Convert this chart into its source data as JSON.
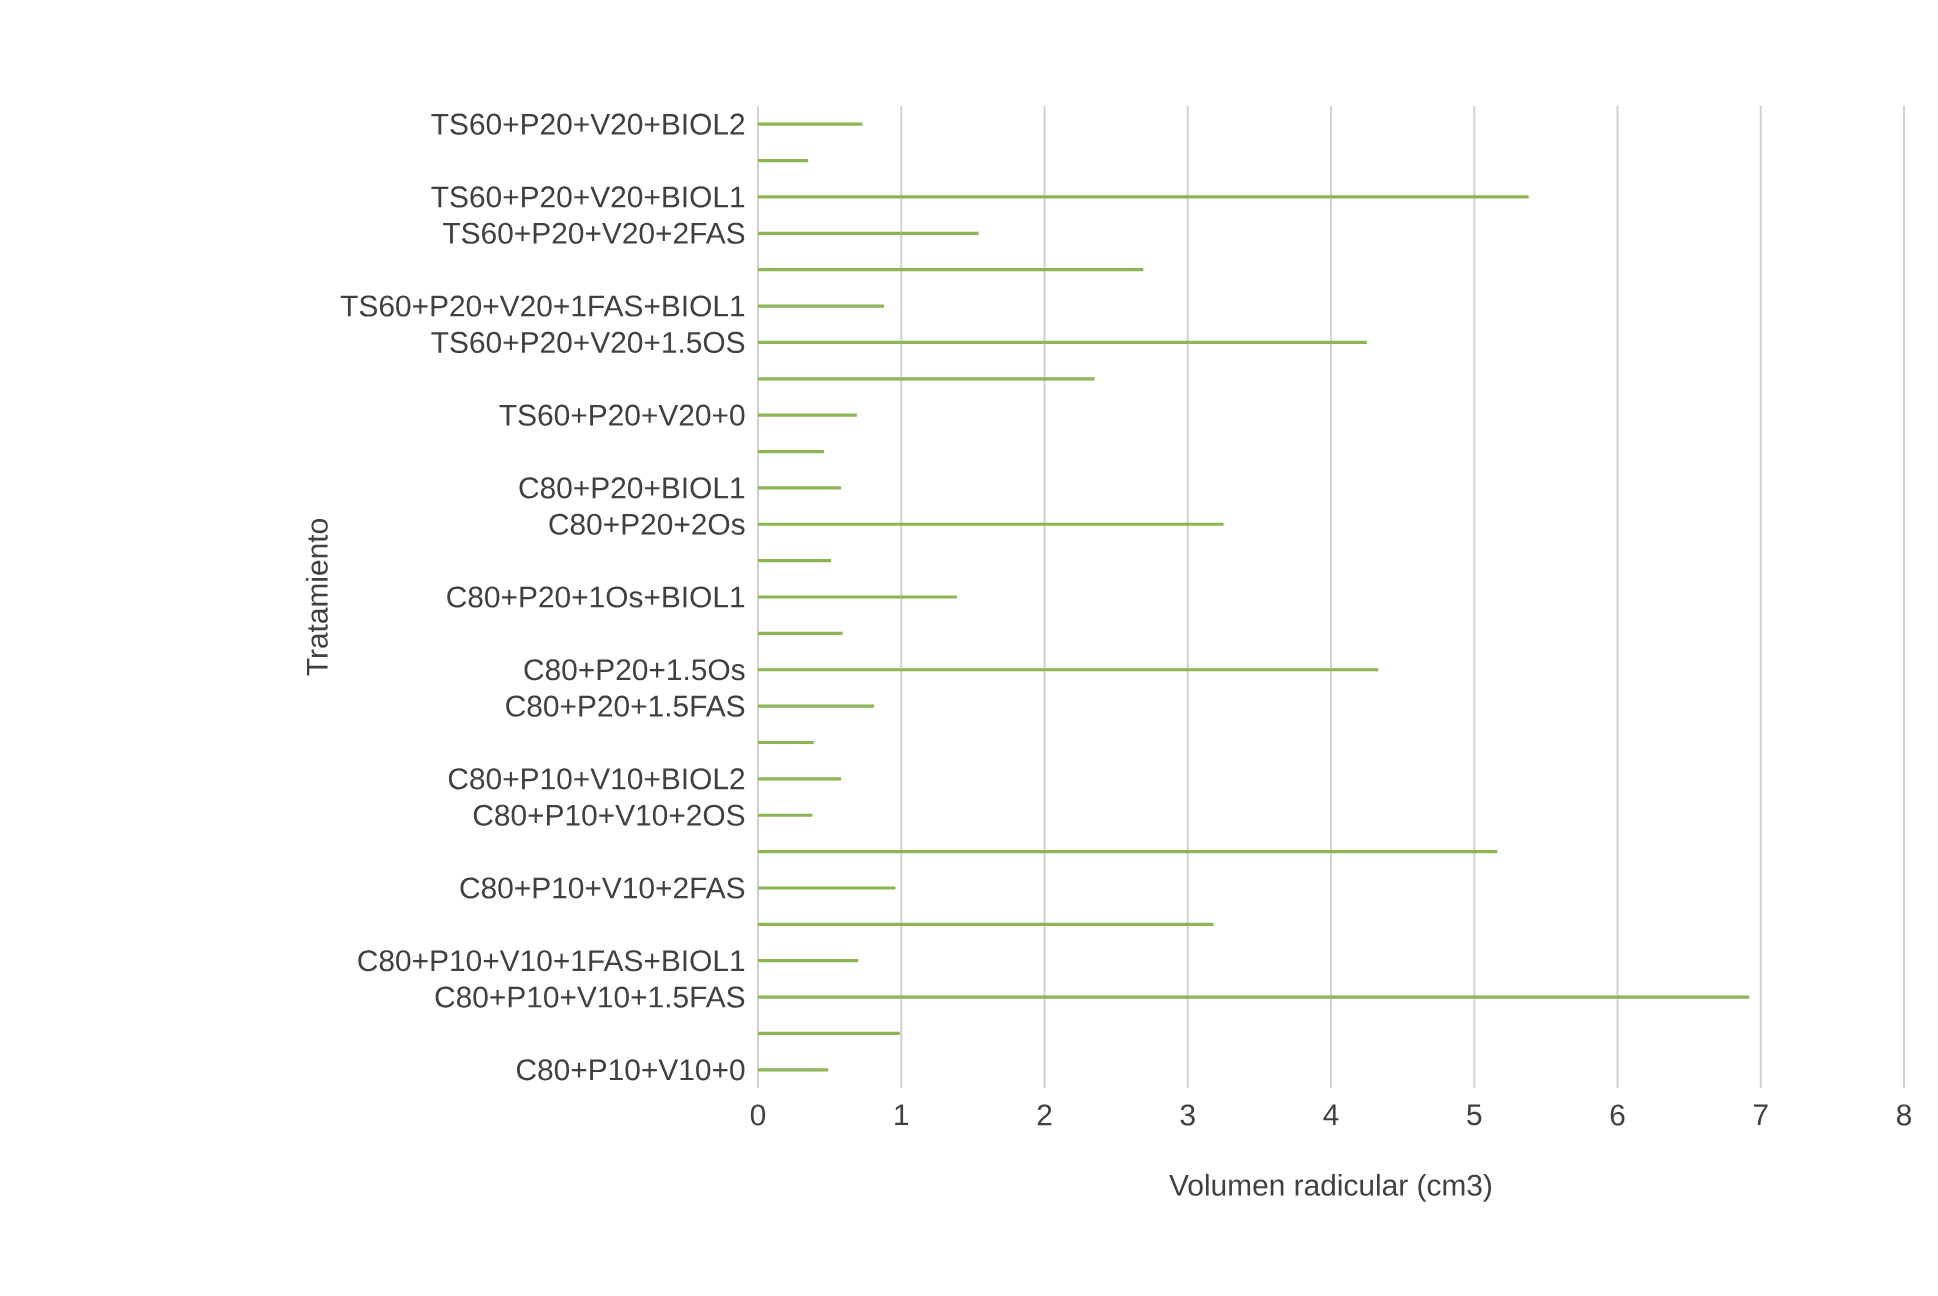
{
  "chart_data": {
    "type": "bar",
    "orientation": "horizontal",
    "xlabel": "Volumen radicular (cm3)",
    "ylabel": "Tratamiento",
    "categories": [
      "TS60+P20+V20+BIOL2",
      null,
      "TS60+P20+V20+BIOL1",
      "TS60+P20+V20+2FAS",
      null,
      "TS60+P20+V20+1FAS+BIOL1",
      "TS60+P20+V20+1.5OS",
      null,
      "TS60+P20+V20+0",
      null,
      "C80+P20+BIOL1",
      "C80+P20+2Os",
      null,
      "C80+P20+1Os+BIOL1",
      null,
      "C80+P20+1.5Os",
      "C80+P20+1.5FAS",
      null,
      "C80+P10+V10+BIOL2",
      "C80+P10+V10+2OS",
      null,
      "C80+P10+V10+2FAS",
      null,
      "C80+P10+V10+1FAS+BIOL1",
      "C80+P10+V10+1.5FAS",
      null,
      "C80+P10+V10+0"
    ],
    "values": [
      0.73,
      0.35,
      5.38,
      1.54,
      2.69,
      0.88,
      4.25,
      2.35,
      0.69,
      0.46,
      0.58,
      3.25,
      0.51,
      1.39,
      0.59,
      4.33,
      0.81,
      0.39,
      0.58,
      0.38,
      5.16,
      0.96,
      3.18,
      0.7,
      6.92,
      0.99,
      0.49
    ],
    "color": "#8db554",
    "xlim": [
      0,
      8
    ],
    "xticks": [
      0,
      1,
      2,
      3,
      4,
      5,
      6,
      7,
      8
    ],
    "grid": "x"
  }
}
